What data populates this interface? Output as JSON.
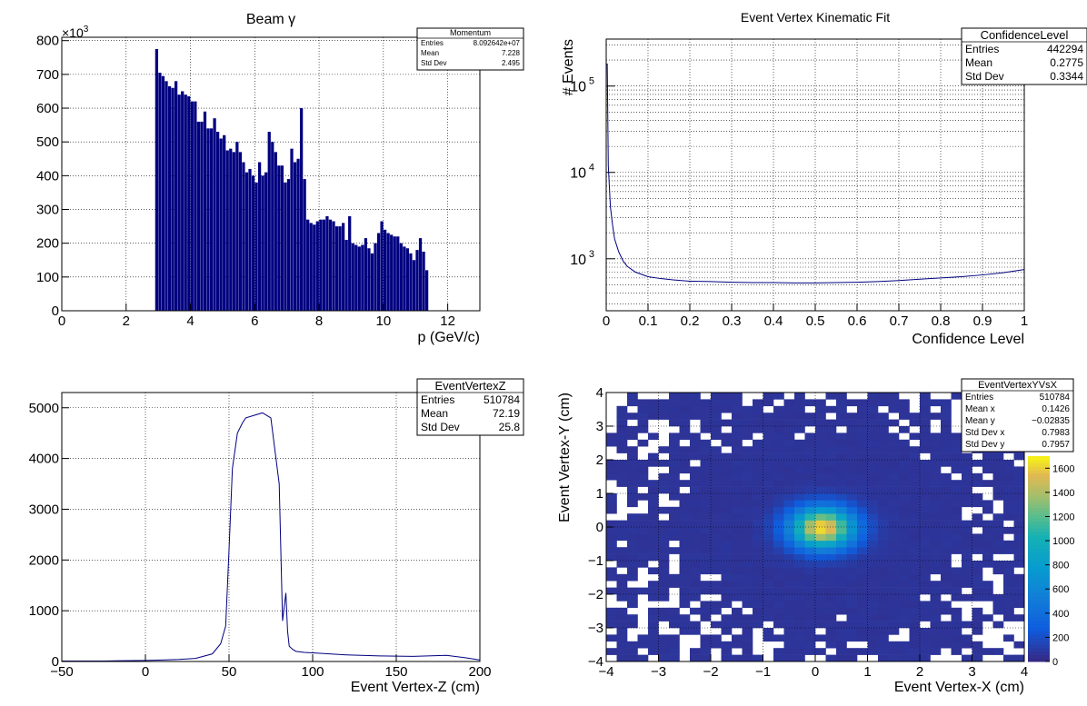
{
  "colors": {
    "line": "#000080",
    "grid": "#000000",
    "frame": "#000000"
  },
  "panels": [
    {
      "id": "beam",
      "title": "Beam γ",
      "xlabel": "p (GeV/c)",
      "ylabel": "",
      "exponent_prefix": "×10",
      "exponent_power": "3",
      "stats": {
        "name": "Momentum",
        "rows": [
          [
            "Entries",
            "8.092642e+07"
          ],
          [
            "Mean",
            "7.228"
          ],
          [
            "Std Dev",
            "2.495"
          ]
        ]
      },
      "xticks": [
        "0",
        "2",
        "4",
        "6",
        "8",
        "10",
        "12"
      ],
      "yticks": [
        "0",
        "100",
        "200",
        "300",
        "400",
        "500",
        "600",
        "700",
        "800"
      ]
    },
    {
      "id": "cl",
      "title": "Event Vertex Kinematic Fit",
      "xlabel": "Confidence Level",
      "ylabel": "# Events",
      "stats": {
        "name": "ConfidenceLevel",
        "rows": [
          [
            "Entries",
            "442294"
          ],
          [
            "Mean",
            "0.2775"
          ],
          [
            "Std Dev",
            "0.3344"
          ]
        ]
      },
      "xticks": [
        "0",
        "0.1",
        "0.2",
        "0.3",
        "0.4",
        "0.5",
        "0.6",
        "0.7",
        "0.8",
        "0.9",
        "1"
      ],
      "yticks_base": "10",
      "yticks_pow": [
        "3",
        "4",
        "5"
      ]
    },
    {
      "id": "vz",
      "title": "",
      "xlabel": "Event Vertex-Z (cm)",
      "ylabel": "",
      "stats": {
        "name": "EventVertexZ",
        "rows": [
          [
            "Entries",
            "510784"
          ],
          [
            "Mean",
            "72.19"
          ],
          [
            "Std Dev",
            "25.8"
          ]
        ]
      },
      "xticks": [
        "−50",
        "0",
        "50",
        "100",
        "150",
        "200"
      ],
      "yticks": [
        "0",
        "1000",
        "2000",
        "3000",
        "4000",
        "5000"
      ]
    },
    {
      "id": "vxy",
      "title": "",
      "xlabel": "Event Vertex-X (cm)",
      "ylabel": "Event Vertex-Y (cm)",
      "stats": {
        "name": "EventVertexYVsX",
        "rows": [
          [
            "Entries",
            "510784"
          ],
          [
            "Mean x",
            "0.1426"
          ],
          [
            "Mean y",
            "−0.02835"
          ],
          [
            "Std Dev x",
            "0.7983"
          ],
          [
            "Std Dev y",
            "0.7957"
          ]
        ]
      },
      "xticks": [
        "−4",
        "−3",
        "−2",
        "−1",
        "0",
        "1",
        "2",
        "3",
        "4"
      ],
      "yticks": [
        "−4",
        "−3",
        "−2",
        "−1",
        "0",
        "1",
        "2",
        "3",
        "4"
      ],
      "zticks": [
        "0",
        "200",
        "400",
        "600",
        "800",
        "1000",
        "1200",
        "1400",
        "1600"
      ]
    }
  ],
  "chart_data": [
    {
      "type": "bar",
      "title": "Beam γ",
      "xlabel": "p (GeV/c)",
      "ylabel": "",
      "xlim": [
        0,
        13
      ],
      "ylim": [
        0,
        810
      ],
      "y_unit": "×10^3",
      "x": [
        2.95,
        3.05,
        3.15,
        3.25,
        3.35,
        3.45,
        3.55,
        3.65,
        3.75,
        3.85,
        3.95,
        4.05,
        4.15,
        4.25,
        4.35,
        4.45,
        4.55,
        4.65,
        4.75,
        4.85,
        4.95,
        5.05,
        5.15,
        5.25,
        5.35,
        5.45,
        5.55,
        5.65,
        5.75,
        5.85,
        5.95,
        6.05,
        6.15,
        6.25,
        6.35,
        6.45,
        6.55,
        6.65,
        6.75,
        6.85,
        6.95,
        7.05,
        7.15,
        7.25,
        7.35,
        7.45,
        7.55,
        7.65,
        7.75,
        7.85,
        7.95,
        8.05,
        8.15,
        8.25,
        8.35,
        8.45,
        8.55,
        8.65,
        8.75,
        8.85,
        8.95,
        9.05,
        9.15,
        9.25,
        9.35,
        9.45,
        9.55,
        9.65,
        9.75,
        9.85,
        9.95,
        10.05,
        10.15,
        10.25,
        10.35,
        10.45,
        10.55,
        10.65,
        10.75,
        10.85,
        10.95,
        11.05,
        11.15,
        11.25,
        11.35
      ],
      "values": [
        775,
        705,
        695,
        680,
        665,
        660,
        680,
        640,
        650,
        640,
        635,
        620,
        620,
        560,
        560,
        590,
        540,
        540,
        570,
        530,
        510,
        520,
        475,
        480,
        470,
        500,
        470,
        440,
        410,
        420,
        400,
        380,
        440,
        400,
        410,
        530,
        500,
        470,
        430,
        430,
        380,
        390,
        480,
        440,
        450,
        600,
        390,
        270,
        260,
        255,
        265,
        270,
        270,
        280,
        270,
        265,
        250,
        250,
        260,
        210,
        280,
        200,
        195,
        190,
        195,
        215,
        185,
        170,
        200,
        230,
        265,
        240,
        230,
        225,
        220,
        220,
        200,
        190,
        185,
        170,
        150,
        180,
        215,
        175,
        120
      ]
    },
    {
      "type": "line",
      "title": "Event Vertex Kinematic Fit",
      "xlabel": "Confidence Level",
      "ylabel": "# Events",
      "xlim": [
        0,
        1
      ],
      "ylim": [
        250,
        350000
      ],
      "log_y": true,
      "x": [
        0.0025,
        0.005,
        0.01,
        0.015,
        0.02,
        0.03,
        0.04,
        0.05,
        0.07,
        0.1,
        0.13,
        0.16,
        0.2,
        0.25,
        0.3,
        0.35,
        0.4,
        0.45,
        0.5,
        0.55,
        0.6,
        0.65,
        0.7,
        0.75,
        0.8,
        0.85,
        0.9,
        0.95,
        1.0
      ],
      "values": [
        180000,
        12000,
        4000,
        2500,
        1700,
        1200,
        950,
        820,
        700,
        620,
        590,
        570,
        550,
        545,
        535,
        530,
        530,
        525,
        525,
        530,
        535,
        545,
        560,
        580,
        600,
        620,
        650,
        690,
        750
      ]
    },
    {
      "type": "line",
      "title": "",
      "xlabel": "Event Vertex-Z (cm)",
      "ylabel": "",
      "xlim": [
        -50,
        200
      ],
      "ylim": [
        0,
        5300
      ],
      "x": [
        -50,
        -25,
        0,
        10,
        20,
        30,
        40,
        45,
        48,
        50,
        52,
        55,
        58,
        60,
        65,
        70,
        75,
        80,
        82,
        84,
        85,
        86,
        88,
        90,
        95,
        100,
        110,
        120,
        140,
        160,
        180,
        190,
        200
      ],
      "values": [
        10,
        10,
        20,
        30,
        40,
        60,
        150,
        350,
        700,
        2200,
        3800,
        4500,
        4700,
        4800,
        4850,
        4900,
        4800,
        3500,
        800,
        1350,
        600,
        300,
        240,
        200,
        180,
        170,
        150,
        130,
        110,
        100,
        120,
        80,
        30
      ]
    },
    {
      "type": "heatmap",
      "title": "",
      "xlabel": "Event Vertex-X (cm)",
      "ylabel": "Event Vertex-Y (cm)",
      "xlim": [
        -4,
        4
      ],
      "ylim": [
        -4,
        4
      ],
      "zlim": [
        0,
        1700
      ],
      "peak": {
        "x": 0.1426,
        "y": -0.02835,
        "z": 1600
      }
    }
  ]
}
